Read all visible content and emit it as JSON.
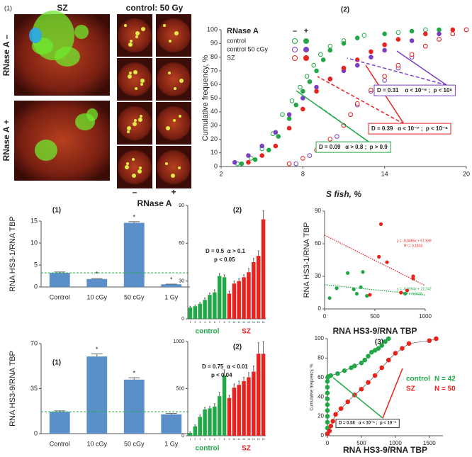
{
  "panel_a": {
    "label": "(1)",
    "left_title": "SZ",
    "right_title": "control: 50 Gy",
    "row_labels": [
      "RNase A –",
      "RNase A +"
    ],
    "column_labels": [
      "–",
      "+"
    ],
    "column_axis_label": "RNase A"
  },
  "chart_data": [
    {
      "type": "line",
      "title": "(2)",
      "x_label": "S fish, %",
      "y_label": "Cumulative frequency, %",
      "xlim": [
        2,
        20
      ],
      "xticks": [
        2,
        8,
        14,
        20
      ],
      "ylim": [
        0,
        100
      ],
      "yticks": [
        0,
        10,
        20,
        30,
        40,
        50,
        60,
        70,
        80,
        90,
        100
      ],
      "legend": "top-left",
      "legend_title": "RNase A",
      "legend_columns": [
        "–",
        "+"
      ],
      "connect": false,
      "series": [
        {
          "name": "control",
          "color": "#22a846",
          "marker": "open",
          "x": [
            3.2,
            4.2,
            5,
            5.8,
            6.5,
            7.2,
            7.8,
            8.3,
            8.8,
            9.3,
            10,
            11,
            12.5,
            15,
            17
          ],
          "values": [
            2,
            6,
            13,
            24,
            38,
            48,
            58,
            66,
            74,
            82,
            88,
            92,
            96,
            98,
            100
          ]
        },
        {
          "name": "control",
          "color": "#22a846",
          "marker": "filled",
          "x": [
            3.5,
            4.5,
            5.5,
            6.2,
            7,
            7.5,
            8,
            8.5,
            9,
            9.5,
            10,
            11,
            12,
            14,
            16,
            18
          ],
          "values": [
            2,
            5,
            12,
            22,
            35,
            45,
            55,
            62,
            70,
            78,
            85,
            90,
            94,
            97,
            99,
            100
          ]
        },
        {
          "name": "control 50 cGy",
          "color": "#7b3fc4",
          "marker": "open",
          "x": [
            7.5,
            8.5,
            9.5,
            10.5,
            11,
            11.5,
            12,
            13,
            14,
            15,
            16,
            17,
            18,
            19,
            20
          ],
          "values": [
            2,
            8,
            14,
            22,
            30,
            38,
            45,
            55,
            63,
            72,
            80,
            88,
            93,
            97,
            100
          ]
        },
        {
          "name": "control 50 cGy",
          "color": "#7b3fc4",
          "marker": "filled",
          "x": [
            3,
            4,
            5,
            6,
            7,
            8,
            9,
            10,
            11,
            12,
            13,
            14,
            16,
            18,
            20
          ],
          "values": [
            3,
            8,
            15,
            25,
            38,
            50,
            58,
            64,
            70,
            74,
            80,
            85,
            92,
            97,
            100
          ]
        },
        {
          "name": "SZ",
          "color": "#e8231f",
          "marker": "open",
          "x": [
            7,
            8,
            9,
            10,
            11,
            11.5,
            12,
            13,
            14,
            15,
            16,
            17,
            18,
            19,
            20
          ],
          "values": [
            2,
            6,
            12,
            20,
            30,
            38,
            46,
            56,
            66,
            74,
            82,
            88,
            93,
            97,
            100
          ]
        },
        {
          "name": "SZ",
          "color": "#e8231f",
          "marker": "filled",
          "x": [
            4,
            5,
            6,
            7,
            8,
            9,
            10,
            11,
            12,
            13,
            14,
            15,
            17,
            19
          ],
          "values": [
            3,
            8,
            15,
            28,
            42,
            55,
            64,
            72,
            78,
            84,
            89,
            93,
            97,
            100
          ]
        }
      ],
      "annotations": [
        {
          "text": "D = 0.31    α < 10⁻⁶ ;  p < 10⁸",
          "border": "#7b3fc4"
        },
        {
          "text": "D = 0.39   α < 10⁻⁷ ;  p < 10⁻⁸",
          "border": "#e8231f"
        },
        {
          "text": "D = 0.09   α > 0.8 ;  p > 0.9",
          "border": "#22a846"
        }
      ]
    },
    {
      "type": "bar",
      "title": "(1)",
      "y_label": "RNA HS3-1/RNA TBP",
      "categories": [
        "Control",
        "10 cGy",
        "50 cGy",
        "1 Gy"
      ],
      "values": [
        3.2,
        1.8,
        14.6,
        0.6
      ],
      "errors": [
        0.2,
        0.1,
        0.25,
        0.05
      ],
      "significance": [
        null,
        "*",
        "*",
        "*"
      ],
      "color": "#5b8fc9",
      "reference_line": 3.2,
      "reference_color": "#20b040",
      "ylim": [
        0,
        15
      ],
      "yticks": [
        0,
        5,
        10,
        15
      ]
    },
    {
      "type": "bar",
      "title": "(2)",
      "ylim": [
        0,
        90
      ],
      "yticks": [
        0,
        30,
        60,
        90
      ],
      "series": [
        {
          "name": "control",
          "color": "#22a846",
          "categories": [
            "1",
            "2",
            "3",
            "4",
            "5",
            "6",
            "7",
            "8"
          ],
          "values": [
            9,
            10,
            12,
            15,
            19,
            21,
            34,
            33
          ],
          "errors": [
            1,
            1,
            1,
            1.5,
            1.5,
            2,
            2,
            2
          ]
        },
        {
          "name": "SZ",
          "color": "#e8231f",
          "categories": [
            "9",
            "10",
            "11",
            "12",
            "13",
            "14",
            "15",
            "16"
          ],
          "values": [
            20,
            28,
            30,
            33,
            37,
            45,
            50,
            79
          ],
          "errors": [
            2,
            2,
            2,
            2,
            3,
            3,
            4,
            7
          ]
        }
      ],
      "annotations": [
        {
          "text": "D = 0.5  ⍺ > 0.1"
        },
        {
          "text": "p < 0.05"
        }
      ]
    },
    {
      "type": "scatter",
      "y_label": "RNA HS3-1/RNA TBP",
      "x_label": "RNA HS3-9/RNA TBP",
      "xlim": [
        0,
        1000
      ],
      "xticks": [
        0,
        500,
        1000
      ],
      "ylim": [
        0,
        90
      ],
      "yticks": [
        0,
        30,
        60,
        90
      ],
      "series": [
        {
          "name": "control",
          "color": "#22a846",
          "x": [
            50,
            120,
            230,
            290,
            320,
            360,
            380,
            420,
            800
          ],
          "values": [
            10,
            19,
            33,
            18,
            14,
            20,
            34,
            12,
            14
          ],
          "trend": {
            "label": "y = -0,0094x + 22,242",
            "r2_label": "R² = 0,0325",
            "slope": -0.0094,
            "intercept": 22.242
          }
        },
        {
          "name": "SZ",
          "color": "#e8231f",
          "x": [
            450,
            540,
            560,
            620,
            760,
            820,
            880,
            880
          ],
          "values": [
            13,
            48,
            78,
            43,
            15,
            17,
            28,
            30
          ],
          "trend": {
            "label": "y = -0,0465x + 67,939",
            "r2_label": "R² = 0,1833",
            "slope": -0.0465,
            "intercept": 67.939
          }
        }
      ]
    },
    {
      "type": "bar",
      "title": "(1)",
      "y_label": "RNA HS3-9/RNA TBP",
      "categories": [
        "Control",
        "10 cGy",
        "50 cGy",
        "1 Gy"
      ],
      "values": [
        17,
        60,
        42,
        15
      ],
      "errors": [
        0.7,
        2,
        1.5,
        0.8
      ],
      "significance": [
        null,
        "*",
        "*",
        null
      ],
      "color": "#5b8fc9",
      "reference_line": 17,
      "reference_color": "#20b040",
      "ylim": [
        0,
        70
      ],
      "yticks": [
        0,
        35,
        70
      ]
    },
    {
      "type": "bar",
      "title": "(2)",
      "ylim": [
        0,
        1000
      ],
      "yticks": [
        0,
        500,
        1000
      ],
      "series": [
        {
          "name": "control",
          "color": "#22a846",
          "categories": [
            "1",
            "2",
            "3",
            "4",
            "5",
            "6",
            "7",
            "8"
          ],
          "values": [
            30,
            100,
            200,
            280,
            290,
            310,
            420,
            640
          ],
          "errors": [
            10,
            15,
            20,
            20,
            20,
            30,
            40,
            60
          ]
        },
        {
          "name": "SZ",
          "color": "#e8231f",
          "categories": [
            "9",
            "10",
            "11",
            "12",
            "13",
            "14",
            "15",
            "16"
          ],
          "values": [
            400,
            510,
            540,
            580,
            620,
            680,
            870,
            870
          ],
          "errors": [
            30,
            40,
            40,
            40,
            50,
            60,
            120,
            130
          ]
        }
      ],
      "annotations": [
        {
          "text": "D = 0.75  ⍺ < 0.01"
        },
        {
          "text": "p < 0.04"
        }
      ]
    },
    {
      "type": "line",
      "title": "(3)",
      "y_label": "Cumulative frequency, %",
      "x_label": "RNA HS3-9/RNA TBP",
      "xlim": [
        0,
        1700
      ],
      "xticks": [
        0,
        500,
        1000,
        1500
      ],
      "ylim": [
        0,
        100
      ],
      "yticks": [
        0,
        20,
        40,
        60,
        80,
        100
      ],
      "connect": true,
      "legend": "right",
      "series": [
        {
          "name": "control",
          "n_label": "N = 42",
          "color": "#22a846",
          "marker": "filled",
          "x": [
            0,
            0,
            0,
            0,
            0,
            0,
            0,
            0,
            0,
            0,
            5,
            10,
            50,
            150,
            250,
            350,
            400,
            500,
            550,
            600,
            650,
            700,
            750,
            800,
            850,
            900
          ],
          "values": [
            2,
            8,
            14,
            20,
            26,
            32,
            38,
            44,
            50,
            56,
            60,
            61,
            62,
            64,
            67,
            70,
            72,
            75,
            78,
            82,
            86,
            88,
            90,
            93,
            97,
            100
          ]
        },
        {
          "name": "SZ",
          "n_label": "N = 50",
          "color": "#e8231f",
          "marker": "filled",
          "x": [
            0,
            30,
            50,
            80,
            120,
            200,
            300,
            400,
            500,
            600,
            700,
            800,
            900,
            1000,
            1100,
            1200,
            1500,
            1600
          ],
          "values": [
            2,
            5,
            10,
            15,
            22,
            28,
            35,
            42,
            48,
            55,
            62,
            70,
            78,
            85,
            90,
            95,
            98,
            100
          ]
        }
      ],
      "annotations": [
        {
          "text": "D = 0.58   α < 10⁻⁶ ;  p < 10⁻⁵",
          "border": "#333333"
        }
      ]
    }
  ]
}
